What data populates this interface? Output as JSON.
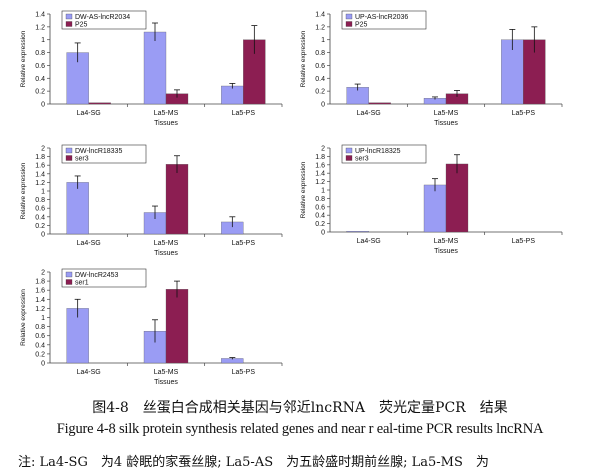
{
  "colors": {
    "series1": "#9a9cf4",
    "series2": "#8c1e52",
    "axis": "#444444",
    "text": "#111111"
  },
  "chart_data": [
    {
      "type": "bar",
      "categories": [
        "La4-SG",
        "La5-MS",
        "La5-PS"
      ],
      "xlabel": "Tissues",
      "ylabel": "Relative expression",
      "ylim": [
        0,
        1.4
      ],
      "yticks": [
        "0",
        "0.2",
        "0.4",
        "0.6",
        "0.8",
        "1",
        "1.2",
        "1.4"
      ],
      "legend_position": "top-left",
      "series": [
        {
          "name": "DW-AS-lncR2034",
          "values": [
            0.8,
            1.12,
            0.28
          ],
          "errors": [
            0.15,
            0.14,
            0.04
          ]
        },
        {
          "name": "P25",
          "values": [
            0.02,
            0.16,
            1.0
          ],
          "errors": [
            0.0,
            0.06,
            0.22
          ]
        }
      ]
    },
    {
      "type": "bar",
      "categories": [
        "La4-SG",
        "La5-MS",
        "La5-PS"
      ],
      "xlabel": "Tissues",
      "ylabel": "Relative expression",
      "ylim": [
        0,
        1.4
      ],
      "yticks": [
        "0",
        "0.2",
        "0.4",
        "0.6",
        "0.8",
        "1",
        "1.2",
        "1.4"
      ],
      "legend_position": "top-left",
      "series": [
        {
          "name": "UP-AS-lncR2036",
          "values": [
            0.26,
            0.09,
            1.0
          ],
          "errors": [
            0.05,
            0.02,
            0.16
          ]
        },
        {
          "name": "P25",
          "values": [
            0.02,
            0.16,
            1.0
          ],
          "errors": [
            0.0,
            0.05,
            0.2
          ]
        }
      ]
    },
    {
      "type": "bar",
      "categories": [
        "La4-SG",
        "La5-MS",
        "La5-PS"
      ],
      "xlabel": "Tissues",
      "ylabel": "Relative expression",
      "ylim": [
        0,
        2
      ],
      "yticks": [
        "0",
        "0.2",
        "0.4",
        "0.6",
        "0.8",
        "1",
        "1.2",
        "1.4",
        "1.6",
        "1.8",
        "2"
      ],
      "legend_position": "top-left",
      "series": [
        {
          "name": "DW-lncR18335",
          "values": [
            1.2,
            0.5,
            0.28
          ],
          "errors": [
            0.15,
            0.15,
            0.12
          ]
        },
        {
          "name": "ser3",
          "values": [
            0,
            1.62,
            0
          ],
          "errors": [
            0,
            0.2,
            0
          ]
        }
      ]
    },
    {
      "type": "bar",
      "categories": [
        "La4-SG",
        "La5-MS",
        "La5-PS"
      ],
      "xlabel": "Tissues",
      "ylabel": "Relative expression",
      "ylim": [
        0,
        2
      ],
      "yticks": [
        "0",
        "0.2",
        "0.4",
        "0.6",
        "0.8",
        "1",
        "1.2",
        "1.4",
        "1.6",
        "1.8",
        "2"
      ],
      "legend_position": "top-left",
      "series": [
        {
          "name": "UP-lncR18325",
          "values": [
            0.02,
            1.12,
            0
          ],
          "errors": [
            0,
            0.15,
            0
          ]
        },
        {
          "name": "ser3",
          "values": [
            0,
            1.62,
            0
          ],
          "errors": [
            0,
            0.22,
            0
          ]
        }
      ]
    },
    {
      "type": "bar",
      "categories": [
        "La4-SG",
        "La5-MS",
        "La5-PS"
      ],
      "xlabel": "Tissues",
      "ylabel": "Relative expression",
      "ylim": [
        0,
        2
      ],
      "yticks": [
        "0",
        "0.2",
        "0.4",
        "0.6",
        "0.8",
        "1",
        "1.2",
        "1.4",
        "1.6",
        "1.8",
        "2"
      ],
      "legend_position": "top-left",
      "series": [
        {
          "name": "DW-lncR2453",
          "values": [
            1.2,
            0.7,
            0.1
          ],
          "errors": [
            0.2,
            0.25,
            0.02
          ]
        },
        {
          "name": "ser1",
          "values": [
            0,
            1.62,
            0
          ],
          "errors": [
            0,
            0.18,
            0
          ]
        }
      ]
    }
  ],
  "caption": {
    "cn": "图4-8　丝蛋白合成相关基因与邻近lncRNA　荧光定量PCR　结果",
    "en": "Figure 4-8 silk protein synthesis related genes and near r eal-time PCR results lncRNA",
    "note": "注: La4-SG　为4 龄眠的家蚕丝腺; La5-AS　为五龄盛时期前丝腺; La5-MS　为"
  }
}
